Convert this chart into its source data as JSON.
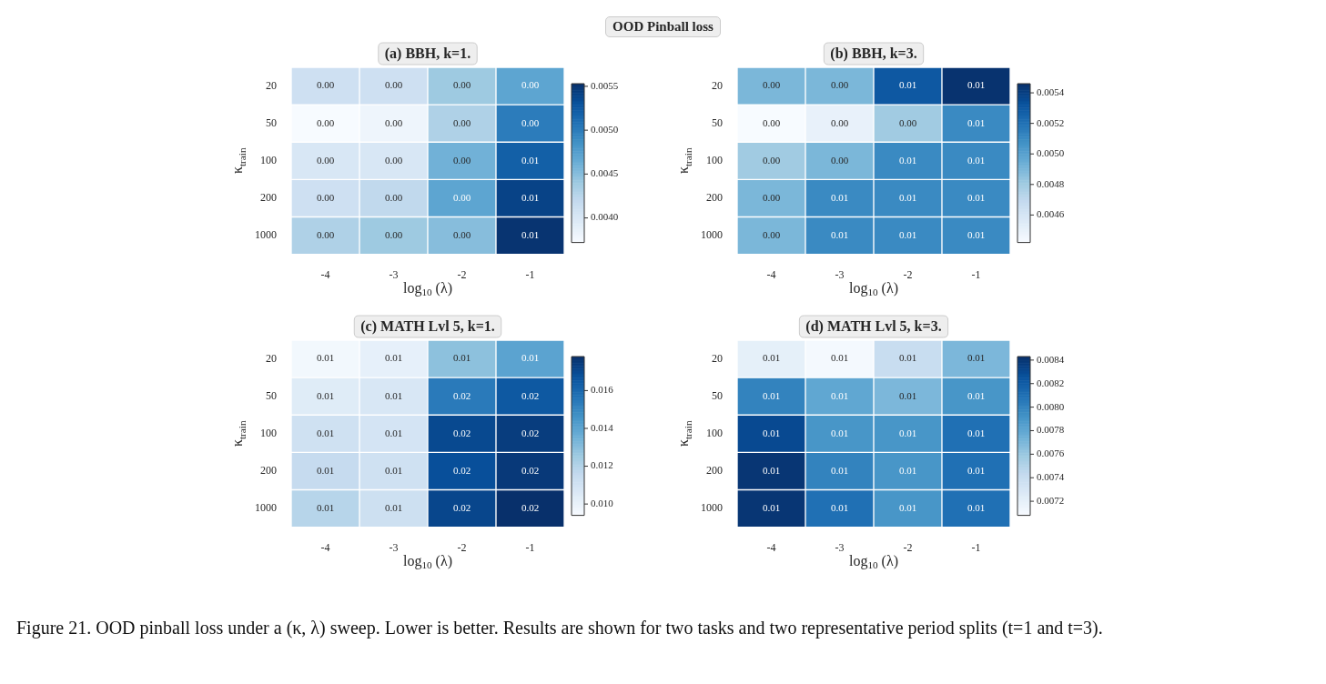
{
  "chart_data": [
    {
      "type": "other",
      "title": "OOD Pinball loss",
      "annotations": [
        "Figure 21. OOD pinball loss under a (κ, λ) sweep. Lower is better. Results are shown for two tasks and two representative period splits (t=1 and t=3)."
      ]
    },
    {
      "type": "heatmap",
      "title": "(a) BBH, k=1.",
      "xlabel": "log$_{10}$ (λ)",
      "ylabel": "κ$_{train}$",
      "categories": [
        "-4",
        "-3",
        "-2",
        "-1"
      ],
      "y_categories": [
        "20",
        "50",
        "100",
        "200",
        "1000"
      ],
      "cells": [
        [
          0.0041,
          0.0041,
          0.0044,
          0.0047
        ],
        [
          0.0037,
          0.0038,
          0.0043,
          0.005
        ],
        [
          0.004,
          0.004,
          0.0046,
          0.0052
        ],
        [
          0.0041,
          0.0042,
          0.0047,
          0.0054
        ],
        [
          0.0043,
          0.0044,
          0.0045,
          0.0055
        ]
      ],
      "cell_labels": [
        [
          "0.00",
          "0.00",
          "0.00",
          "0.00"
        ],
        [
          "0.00",
          "0.00",
          "0.00",
          "0.00"
        ],
        [
          "0.00",
          "0.00",
          "0.00",
          "0.01"
        ],
        [
          "0.00",
          "0.00",
          "0.00",
          "0.01"
        ],
        [
          "0.00",
          "0.00",
          "0.00",
          "0.01"
        ]
      ],
      "clim": [
        0.00372,
        0.00553
      ],
      "cticks": [
        {
          "value": 0.004,
          "label": "0.0040"
        },
        0.0045,
        {
          "value": 0.005,
          "label": "0.0050"
        },
        0.0055
      ]
    },
    {
      "type": "heatmap",
      "title": "(b) BBH, k=3.",
      "xlabel": "log$_{10}$ (λ)",
      "ylabel": "κ$_{train}$",
      "categories": [
        "-4",
        "-3",
        "-2",
        "-1"
      ],
      "y_categories": [
        "20",
        "50",
        "100",
        "200",
        "1000"
      ],
      "cells": [
        [
          0.0049,
          0.0049,
          0.0053,
          0.00545
        ],
        [
          0.0044,
          0.0045,
          0.0048,
          0.0051
        ],
        [
          0.0048,
          0.0049,
          0.0051,
          0.0051
        ],
        [
          0.0049,
          0.0051,
          0.0051,
          0.0051
        ],
        [
          0.0049,
          0.0051,
          0.0051,
          0.0051
        ]
      ],
      "cell_labels": [
        [
          "0.00",
          "0.00",
          "0.01",
          "0.01"
        ],
        [
          "0.00",
          "0.00",
          "0.00",
          "0.01"
        ],
        [
          "0.00",
          "0.00",
          "0.01",
          "0.01"
        ],
        [
          "0.00",
          "0.01",
          "0.01",
          "0.01"
        ],
        [
          "0.00",
          "0.01",
          "0.01",
          "0.01"
        ]
      ],
      "clim": [
        0.00442,
        0.00546
      ],
      "cticks": [
        0.0046,
        0.0048,
        {
          "value": 0.005,
          "label": "0.0050"
        },
        0.0052,
        0.0054
      ]
    },
    {
      "type": "heatmap",
      "title": "(c) MATH Lvl 5, k=1.",
      "xlabel": "log$_{10}$ (λ)",
      "ylabel": "κ$_{train}$",
      "categories": [
        "-4",
        "-3",
        "-2",
        "-1"
      ],
      "y_categories": [
        "20",
        "50",
        "100",
        "200",
        "1000"
      ],
      "cells": [
        [
          0.0096,
          0.0101,
          0.0129,
          0.014
        ],
        [
          0.0104,
          0.0107,
          0.0154,
          0.0165
        ],
        [
          0.0111,
          0.0109,
          0.017,
          0.0174
        ],
        [
          0.0115,
          0.0111,
          0.0168,
          0.0175
        ],
        [
          0.0119,
          0.0112,
          0.0171,
          0.0178
        ]
      ],
      "cell_labels": [
        [
          "0.01",
          "0.01",
          "0.01",
          "0.01"
        ],
        [
          "0.01",
          "0.01",
          "0.02",
          "0.02"
        ],
        [
          "0.01",
          "0.01",
          "0.02",
          "0.02"
        ],
        [
          "0.01",
          "0.01",
          "0.02",
          "0.02"
        ],
        [
          "0.01",
          "0.01",
          "0.02",
          "0.02"
        ]
      ],
      "clim": [
        0.0094,
        0.0178
      ],
      "cticks": [
        {
          "value": 0.01,
          "label": "0.010"
        },
        0.012,
        0.014,
        0.016
      ]
    },
    {
      "type": "heatmap",
      "title": "(d) MATH Lvl 5, k=3.",
      "xlabel": "log$_{10}$ (λ)",
      "ylabel": "κ$_{train}$",
      "categories": [
        "-4",
        "-3",
        "-2",
        "-1"
      ],
      "y_categories": [
        "20",
        "50",
        "100",
        "200",
        "1000"
      ],
      "cells": [
        [
          0.0072,
          0.0071,
          0.0074,
          0.0077
        ],
        [
          0.008,
          0.0078,
          0.0077,
          0.0079
        ],
        [
          0.0083,
          0.0079,
          0.0079,
          0.0081
        ],
        [
          0.0084,
          0.008,
          0.0079,
          0.0081
        ],
        [
          0.0084,
          0.0081,
          0.0079,
          0.0081
        ]
      ],
      "cell_labels": [
        [
          "0.01",
          "0.01",
          "0.01",
          "0.01"
        ],
        [
          "0.01",
          "0.01",
          "0.01",
          "0.01"
        ],
        [
          "0.01",
          "0.01",
          "0.01",
          "0.01"
        ],
        [
          "0.01",
          "0.01",
          "0.01",
          "0.01"
        ],
        [
          "0.01",
          "0.01",
          "0.01",
          "0.01"
        ]
      ],
      "clim": [
        0.00708,
        0.00843
      ],
      "cticks": [
        0.0072,
        0.0074,
        0.0076,
        0.0078,
        {
          "value": 0.008,
          "label": "0.0080"
        },
        0.0082,
        0.0084
      ]
    }
  ]
}
